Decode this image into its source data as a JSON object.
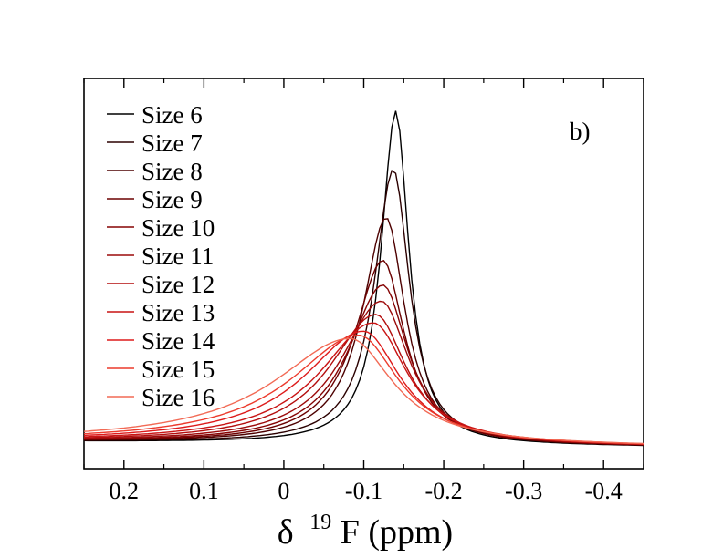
{
  "chart_data": {
    "type": "line",
    "title": "",
    "annotation": "b)",
    "xlabel_symbol": "δ",
    "xlabel_superscript": "19",
    "xlabel_rest": "F (ppm)",
    "ylabel": "",
    "xlim": [
      0.25,
      -0.45
    ],
    "ylim": [
      0,
      1
    ],
    "x_reversed": true,
    "y_ticks_labeled": false,
    "x_ticks": [
      0.2,
      0.1,
      0,
      -0.1,
      -0.2,
      -0.3,
      -0.4
    ],
    "x_tick_labels": [
      "0.2",
      "0.1",
      "0",
      "-0.1",
      "-0.2",
      "-0.3",
      "-0.4"
    ],
    "legend_position": "top-left",
    "series": [
      {
        "name": "Size 6",
        "color": "#000000",
        "peak_x": -0.14,
        "peak_y": 1.0
      },
      {
        "name": "Size 7",
        "color": "#2b0000",
        "peak_x": -0.137,
        "peak_y": 0.825
      },
      {
        "name": "Size 8",
        "color": "#4d0000",
        "peak_x": -0.128,
        "peak_y": 0.68
      },
      {
        "name": "Size 9",
        "color": "#6b0000",
        "peak_x": -0.124,
        "peak_y": 0.552
      },
      {
        "name": "Size 10",
        "color": "#850303",
        "peak_x": -0.124,
        "peak_y": 0.478
      },
      {
        "name": "Size 11",
        "color": "#9c0a0a",
        "peak_x": -0.122,
        "peak_y": 0.43
      },
      {
        "name": "Size 12",
        "color": "#b30d0d",
        "peak_x": -0.115,
        "peak_y": 0.39
      },
      {
        "name": "Size 13",
        "color": "#c91414",
        "peak_x": -0.112,
        "peak_y": 0.365
      },
      {
        "name": "Size 14",
        "color": "#dd1a1a",
        "peak_x": -0.1,
        "peak_y": 0.34
      },
      {
        "name": "Size 15",
        "color": "#ec3a2c",
        "peak_x": -0.094,
        "peak_y": 0.328
      },
      {
        "name": "Size 16",
        "color": "#f26a55",
        "peak_x": -0.083,
        "peak_y": 0.318
      }
    ]
  }
}
